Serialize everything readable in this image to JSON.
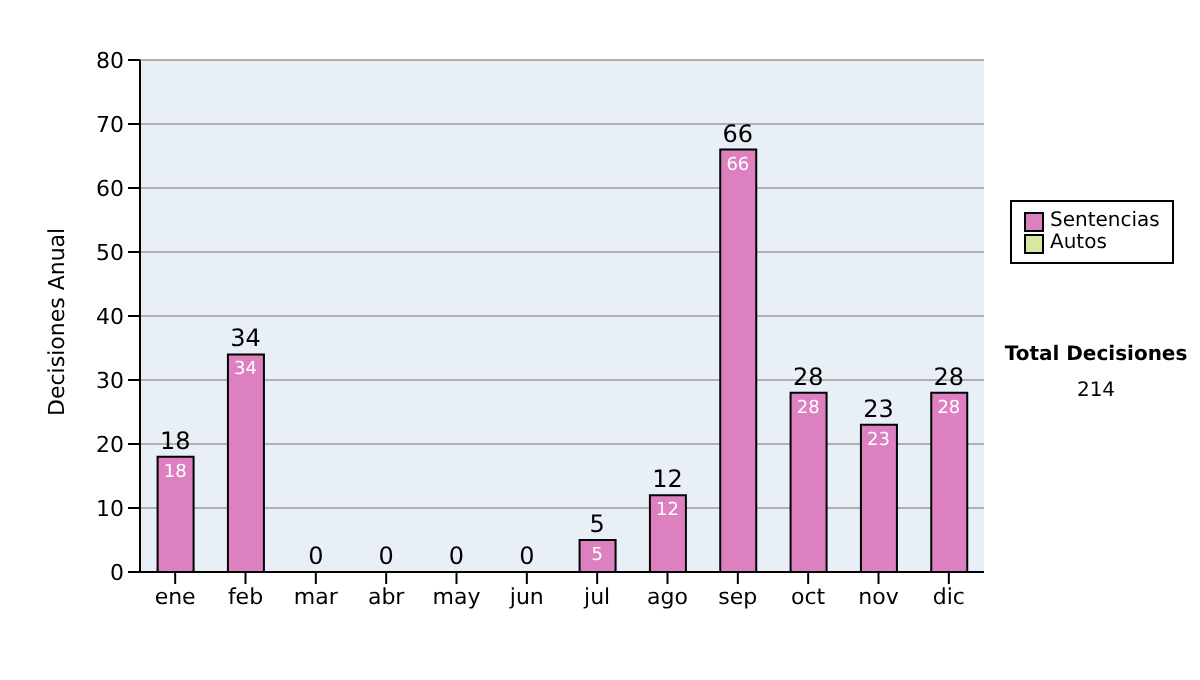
{
  "chart_data": {
    "type": "bar",
    "stacked": true,
    "ylabel": "Decisiones Anual",
    "categories": [
      "ene",
      "feb",
      "mar",
      "abr",
      "may",
      "jun",
      "jul",
      "ago",
      "sep",
      "oct",
      "nov",
      "dic"
    ],
    "series": [
      {
        "name": "Sentencias",
        "color": "#dd80c0",
        "values": [
          18,
          34,
          0,
          0,
          0,
          0,
          5,
          12,
          66,
          28,
          23,
          28
        ],
        "value_labels": [
          "18",
          "34",
          null,
          null,
          null,
          null,
          "5",
          "12",
          "66",
          "28",
          "23",
          "28"
        ]
      },
      {
        "name": "Autos",
        "color": "#d8e8a0",
        "values": [
          0,
          0,
          0,
          0,
          0,
          0,
          0,
          0,
          0,
          0,
          0,
          0
        ]
      }
    ],
    "totals": [
      "18",
      "34",
      "0",
      "0",
      "0",
      "0",
      "5",
      "12",
      "66",
      "28",
      "23",
      "28"
    ],
    "ylim": [
      0,
      80
    ],
    "yticks": [
      0,
      10,
      20,
      30,
      40,
      50,
      60,
      70,
      80
    ],
    "grid": "y",
    "legend": "right",
    "annotations": [
      "Total Decisiones",
      "214"
    ]
  }
}
